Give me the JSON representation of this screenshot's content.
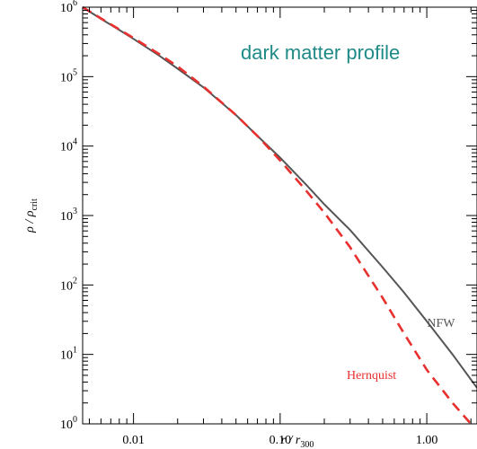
{
  "chart_data": {
    "type": "line",
    "title": "dark matter profile",
    "title_color": "#1f8a86",
    "xlabel": "r / r₃₀₀",
    "ylabel": "ρ / ρₒᵣᵢₜ",
    "x_scale": "log",
    "y_scale": "log",
    "xlim": [
      0.0045,
      2.2
    ],
    "ylim": [
      1,
      1000000
    ],
    "x_ticks": [
      {
        "value": 0.01,
        "label": "0.01"
      },
      {
        "value": 0.1,
        "label": "0.10"
      },
      {
        "value": 1.0,
        "label": "1.00"
      }
    ],
    "y_ticks": [
      {
        "exp": 0,
        "base": "10",
        "sup": "0"
      },
      {
        "exp": 1,
        "base": "10",
        "sup": "1"
      },
      {
        "exp": 2,
        "base": "10",
        "sup": "2"
      },
      {
        "exp": 3,
        "base": "10",
        "sup": "3"
      },
      {
        "exp": 4,
        "base": "10",
        "sup": "4"
      },
      {
        "exp": 5,
        "base": "10",
        "sup": "5"
      },
      {
        "exp": 6,
        "base": "10",
        "sup": "6"
      }
    ],
    "grid": false,
    "series": [
      {
        "name": "NFW",
        "color": "#555555",
        "style": "solid",
        "x": [
          0.0045,
          0.006,
          0.008,
          0.01,
          0.015,
          0.02,
          0.03,
          0.05,
          0.07,
          0.1,
          0.15,
          0.2,
          0.3,
          0.5,
          0.7,
          1.0,
          1.5,
          2.2
        ],
        "y": [
          1000000,
          680000,
          470000,
          350000,
          200000,
          130000,
          70000,
          28000,
          14000,
          6800,
          2800,
          1450,
          620,
          180,
          78,
          30,
          10,
          3.3
        ]
      },
      {
        "name": "Hernquist",
        "color": "#e8302e",
        "style": "dashed",
        "x": [
          0.0045,
          0.006,
          0.008,
          0.01,
          0.015,
          0.02,
          0.03,
          0.05,
          0.07,
          0.1,
          0.15,
          0.2,
          0.3,
          0.5,
          0.7,
          1.0,
          1.5,
          2.0
        ],
        "y": [
          1000000,
          690000,
          480000,
          360000,
          210000,
          140000,
          72000,
          28000,
          14000,
          6200,
          2300,
          1100,
          350,
          65,
          20,
          6,
          2,
          1
        ]
      }
    ],
    "labels": [
      {
        "text": "NFW",
        "series": "NFW",
        "x": 1.25,
        "y": 25
      },
      {
        "text": "Hernquist",
        "series": "Hernquist",
        "x": 0.42,
        "y": 4.4
      }
    ]
  }
}
